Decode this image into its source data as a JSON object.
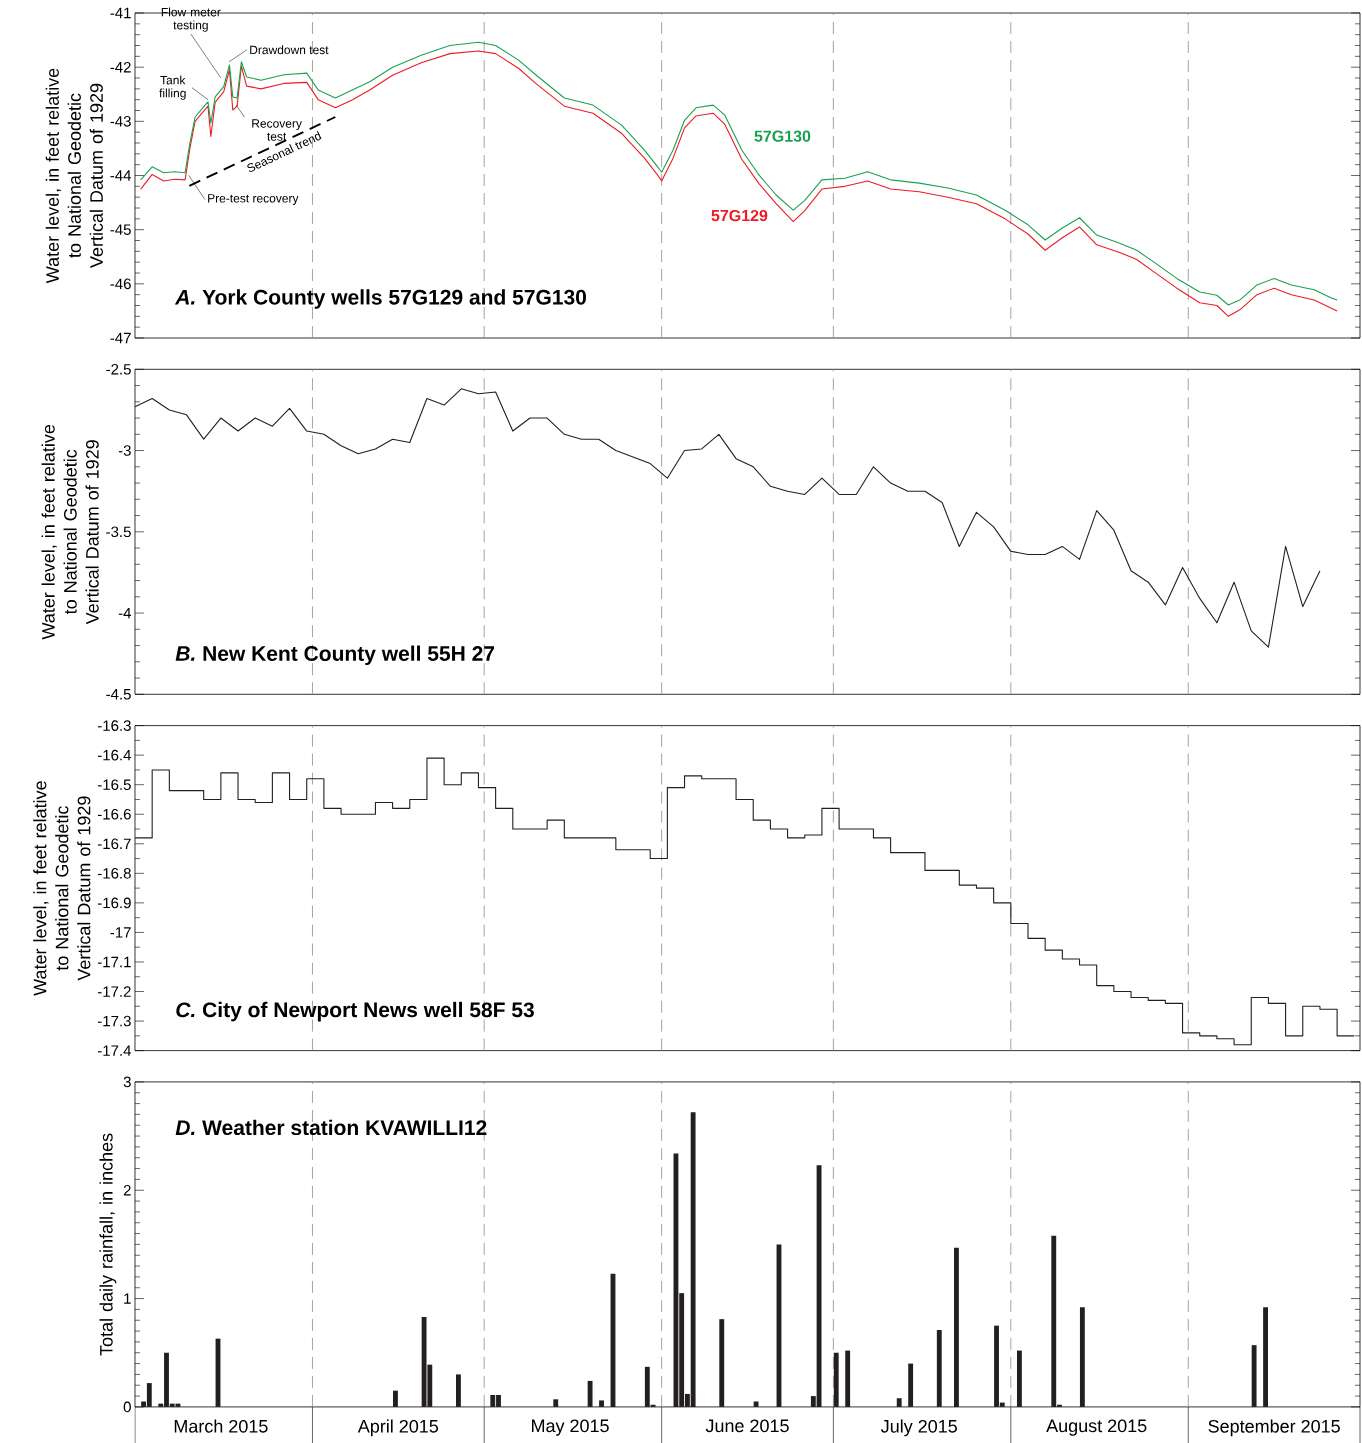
{
  "chart_data": [
    {
      "type": "line",
      "title": "*A.* York County wells 57G129 and 57G130",
      "ylabel": "Water level, in feet relative to National Geodetic Vertical Datum of 1929",
      "xlim": [
        "2015-03-01",
        "2015-10-01"
      ],
      "ylim": [
        -47,
        -41
      ],
      "yticks": [
        -47,
        -46,
        -45,
        -44,
        -43,
        -42,
        -41
      ],
      "tick_labels": "y",
      "x": [
        "2015-03-02",
        "2015-03-04",
        "2015-03-06",
        "2015-03-08",
        "2015-03-09T18:00",
        "2015-03-10T14:00",
        "2015-03-11T12:00",
        "2015-03-13T06:00",
        "2015-03-13T18:00",
        "2015-03-14T06:00",
        "2015-03-15",
        "2015-03-16T12:00",
        "2015-03-17T12:00",
        "2015-03-18T02:00",
        "2015-03-18T20:00",
        "2015-03-19T14:00",
        "2015-03-20T12:00",
        "2015-03-23",
        "2015-03-27",
        "2015-03-31",
        "2015-04-02",
        "2015-04-05",
        "2015-04-08",
        "2015-04-11",
        "2015-04-15",
        "2015-04-20",
        "2015-04-25",
        "2015-04-30",
        "2015-05-03",
        "2015-05-07",
        "2015-05-10",
        "2015-05-15",
        "2015-05-20",
        "2015-05-25",
        "2015-05-29",
        "2015-05-31",
        "2015-06-01",
        "2015-06-03",
        "2015-06-05",
        "2015-06-07",
        "2015-06-10",
        "2015-06-12",
        "2015-06-15",
        "2015-06-18",
        "2015-06-21",
        "2015-06-24",
        "2015-06-26",
        "2015-06-29",
        "2015-07-03",
        "2015-07-07",
        "2015-07-11",
        "2015-07-16",
        "2015-07-21",
        "2015-07-26",
        "2015-07-31",
        "2015-08-04",
        "2015-08-07",
        "2015-08-10",
        "2015-08-13",
        "2015-08-16",
        "2015-08-20",
        "2015-08-23",
        "2015-08-26",
        "2015-08-30",
        "2015-09-03",
        "2015-09-06",
        "2015-09-08",
        "2015-09-10",
        "2015-09-13",
        "2015-09-16",
        "2015-09-19",
        "2015-09-23",
        "2015-09-26",
        "2015-09-27"
      ],
      "series": [
        {
          "name": "57G129",
          "color": "#ed1c24",
          "values": [
            -44.25,
            -43.98,
            -44.1,
            -44.07,
            -44.08,
            -43.5,
            -43.0,
            -42.78,
            -42.72,
            -43.28,
            -42.65,
            -42.45,
            -42.05,
            -42.79,
            -42.72,
            -41.98,
            -42.35,
            -42.4,
            -42.3,
            -42.28,
            -42.6,
            -42.75,
            -42.6,
            -42.42,
            -42.15,
            -41.92,
            -41.75,
            -41.7,
            -41.75,
            -42.02,
            -42.3,
            -42.72,
            -42.85,
            -43.22,
            -43.68,
            -43.95,
            -44.1,
            -43.68,
            -43.12,
            -42.9,
            -42.85,
            -43.05,
            -43.7,
            -44.15,
            -44.52,
            -44.85,
            -44.65,
            -44.25,
            -44.2,
            -44.1,
            -44.25,
            -44.3,
            -44.4,
            -44.52,
            -44.8,
            -45.08,
            -45.38,
            -45.15,
            -44.95,
            -45.28,
            -45.42,
            -45.55,
            -45.78,
            -46.08,
            -46.35,
            -46.4,
            -46.6,
            -46.48,
            -46.2,
            -46.08,
            -46.2,
            -46.3,
            -46.45,
            -46.5
          ]
        },
        {
          "name": "57G130",
          "color": "#1aa150",
          "values": [
            -44.08,
            -43.84,
            -43.95,
            -43.93,
            -43.95,
            -43.4,
            -42.92,
            -42.7,
            -42.64,
            -43.03,
            -42.55,
            -42.36,
            -41.96,
            -42.55,
            -42.57,
            -41.9,
            -42.18,
            -42.24,
            -42.14,
            -42.11,
            -42.42,
            -42.57,
            -42.42,
            -42.27,
            -42.0,
            -41.78,
            -41.6,
            -41.54,
            -41.6,
            -41.87,
            -42.14,
            -42.57,
            -42.7,
            -43.07,
            -43.53,
            -43.8,
            -43.94,
            -43.53,
            -42.98,
            -42.75,
            -42.7,
            -42.88,
            -43.53,
            -43.99,
            -44.36,
            -44.64,
            -44.46,
            -44.08,
            -44.05,
            -43.93,
            -44.08,
            -44.14,
            -44.23,
            -44.36,
            -44.64,
            -44.91,
            -45.19,
            -44.97,
            -44.78,
            -45.1,
            -45.25,
            -45.38,
            -45.6,
            -45.9,
            -46.15,
            -46.21,
            -46.39,
            -46.3,
            -46.02,
            -45.9,
            -46.02,
            -46.11,
            -46.26,
            -46.3
          ]
        },
        {
          "name": "Seasonal trend",
          "color": "#000000",
          "line_style": "dashed",
          "x": [
            "2015-03-10T12:00",
            "2015-04-05"
          ],
          "values": [
            -44.19,
            -42.92
          ]
        }
      ],
      "annotations": [
        {
          "text": "Flow meter testing",
          "x": "2015-03-16",
          "y": -42.2
        },
        {
          "text": "Tank filling",
          "x": "2015-03-13T18:00",
          "y": -42.6
        },
        {
          "text": "Drawdown test",
          "x": "2015-03-17T10:00",
          "y": -41.9
        },
        {
          "text": "Recovery test",
          "x": "2015-03-18T17:00",
          "y": -42.7
        },
        {
          "text": "Pre-test recovery",
          "x": "2015-03-10T10:00",
          "y": -44.0
        }
      ],
      "ref_lines": [
        {
          "axis": "x",
          "value": "2015-04-01",
          "color": "#8c8c8c",
          "line_style": "dashed"
        },
        {
          "axis": "x",
          "value": "2015-05-01",
          "color": "#8c8c8c",
          "line_style": "dashed"
        },
        {
          "axis": "x",
          "value": "2015-06-01",
          "color": "#8c8c8c",
          "line_style": "dashed"
        },
        {
          "axis": "x",
          "value": "2015-07-01",
          "color": "#8c8c8c",
          "line_style": "dashed"
        },
        {
          "axis": "x",
          "value": "2015-08-01",
          "color": "#8c8c8c",
          "line_style": "dashed"
        },
        {
          "axis": "x",
          "value": "2015-09-01",
          "color": "#8c8c8c",
          "line_style": "dashed"
        }
      ]
    },
    {
      "type": "line",
      "title": "*B.* New Kent County well 55H 27",
      "ylabel": "Water level, in feet relative to National Geodetic Vertical Datum of 1929",
      "xlim": [
        "2015-03-01",
        "2015-10-01"
      ],
      "ylim": [
        -4.5,
        -2.5
      ],
      "yticks": [
        -4.5,
        -4,
        -3.5,
        -3,
        -2.5
      ],
      "tick_labels": "y",
      "color": "#231f20",
      "x": [
        "2015-03-01",
        "2015-03-04",
        "2015-03-07",
        "2015-03-10",
        "2015-03-13",
        "2015-03-16",
        "2015-03-19",
        "2015-03-22",
        "2015-03-25",
        "2015-03-28",
        "2015-03-31",
        "2015-04-03",
        "2015-04-06",
        "2015-04-09",
        "2015-04-12",
        "2015-04-15",
        "2015-04-18",
        "2015-04-21",
        "2015-04-24",
        "2015-04-27",
        "2015-04-30",
        "2015-05-03",
        "2015-05-06",
        "2015-05-09",
        "2015-05-12",
        "2015-05-15",
        "2015-05-18",
        "2015-05-21",
        "2015-05-24",
        "2015-05-27",
        "2015-05-30",
        "2015-06-02",
        "2015-06-05",
        "2015-06-08",
        "2015-06-11",
        "2015-06-14",
        "2015-06-17",
        "2015-06-20",
        "2015-06-23",
        "2015-06-26",
        "2015-06-29",
        "2015-07-02",
        "2015-07-05",
        "2015-07-08",
        "2015-07-11",
        "2015-07-14",
        "2015-07-17",
        "2015-07-20",
        "2015-07-23",
        "2015-07-26",
        "2015-07-29",
        "2015-08-01",
        "2015-08-04",
        "2015-08-07",
        "2015-08-10",
        "2015-08-13",
        "2015-08-16",
        "2015-08-19",
        "2015-08-22",
        "2015-08-25",
        "2015-08-28",
        "2015-08-31",
        "2015-09-03",
        "2015-09-06",
        "2015-09-09",
        "2015-09-12",
        "2015-09-15",
        "2015-09-18",
        "2015-09-21",
        "2015-09-24"
      ],
      "values": [
        -2.73,
        -2.68,
        -2.75,
        -2.78,
        -2.93,
        -2.8,
        -2.88,
        -2.8,
        -2.85,
        -2.74,
        -2.88,
        -2.9,
        -2.97,
        -3.02,
        -2.99,
        -2.93,
        -2.95,
        -2.68,
        -2.72,
        -2.62,
        -2.65,
        -2.64,
        -2.88,
        -2.8,
        -2.8,
        -2.9,
        -2.93,
        -2.93,
        -3.0,
        -3.04,
        -3.08,
        -3.17,
        -3.0,
        -2.99,
        -2.9,
        -3.05,
        -3.1,
        -3.22,
        -3.25,
        -3.27,
        -3.17,
        -3.27,
        -3.27,
        -3.1,
        -3.2,
        -3.25,
        -3.25,
        -3.32,
        -3.59,
        -3.38,
        -3.47,
        -3.62,
        -3.64,
        -3.64,
        -3.59,
        -3.67,
        -3.37,
        -3.49,
        -3.74,
        -3.81,
        -3.95,
        -3.72,
        -3.91,
        -4.06,
        -3.81,
        -4.11,
        -4.21,
        -3.59,
        -3.96,
        -3.74
      ],
      "ref_lines": [
        {
          "axis": "x",
          "value": "2015-04-01",
          "color": "#8c8c8c",
          "line_style": "dashed"
        },
        {
          "axis": "x",
          "value": "2015-05-01",
          "color": "#8c8c8c",
          "line_style": "dashed"
        },
        {
          "axis": "x",
          "value": "2015-06-01",
          "color": "#8c8c8c",
          "line_style": "dashed"
        },
        {
          "axis": "x",
          "value": "2015-07-01",
          "color": "#8c8c8c",
          "line_style": "dashed"
        },
        {
          "axis": "x",
          "value": "2015-08-01",
          "color": "#8c8c8c",
          "line_style": "dashed"
        },
        {
          "axis": "x",
          "value": "2015-09-01",
          "color": "#8c8c8c",
          "line_style": "dashed"
        }
      ]
    },
    {
      "type": "step",
      "title": "*C.* City of Newport News well 58F 53",
      "ylabel": "Water level, in feet relative to National Geodetic Vertical Datum of 1929",
      "xlim": [
        "2015-03-01",
        "2015-10-01"
      ],
      "ylim": [
        -17.4,
        -16.3
      ],
      "yticks": [
        -17.4,
        -17.3,
        -17.2,
        -17.1,
        -17,
        -16.9,
        -16.8,
        -16.7,
        -16.6,
        -16.5,
        -16.4,
        -16.3
      ],
      "tick_labels": "y",
      "color": "#231f20",
      "x": [
        "2015-03-01",
        "2015-03-04",
        "2015-03-07",
        "2015-03-10",
        "2015-03-13",
        "2015-03-16",
        "2015-03-19",
        "2015-03-22",
        "2015-03-25",
        "2015-03-28",
        "2015-03-31",
        "2015-04-03",
        "2015-04-06",
        "2015-04-09",
        "2015-04-12",
        "2015-04-15",
        "2015-04-18",
        "2015-04-21",
        "2015-04-24",
        "2015-04-27",
        "2015-04-30",
        "2015-05-03",
        "2015-05-06",
        "2015-05-09",
        "2015-05-12",
        "2015-05-15",
        "2015-05-18",
        "2015-05-21",
        "2015-05-24",
        "2015-05-27",
        "2015-05-30",
        "2015-06-02",
        "2015-06-05",
        "2015-06-08",
        "2015-06-11",
        "2015-06-14",
        "2015-06-17",
        "2015-06-20",
        "2015-06-23",
        "2015-06-26",
        "2015-06-29",
        "2015-07-02",
        "2015-07-05",
        "2015-07-08",
        "2015-07-11",
        "2015-07-14",
        "2015-07-17",
        "2015-07-20",
        "2015-07-23",
        "2015-07-26",
        "2015-07-29",
        "2015-08-01",
        "2015-08-04",
        "2015-08-07",
        "2015-08-10",
        "2015-08-13",
        "2015-08-16",
        "2015-08-19",
        "2015-08-22",
        "2015-08-25",
        "2015-08-28",
        "2015-08-31",
        "2015-09-03",
        "2015-09-06",
        "2015-09-09",
        "2015-09-12",
        "2015-09-15",
        "2015-09-18",
        "2015-09-21",
        "2015-09-24",
        "2015-09-27",
        "2015-09-30"
      ],
      "values": [
        -16.68,
        -16.45,
        -16.52,
        -16.52,
        -16.55,
        -16.46,
        -16.55,
        -16.56,
        -16.46,
        -16.55,
        -16.48,
        -16.58,
        -16.6,
        -16.6,
        -16.56,
        -16.58,
        -16.55,
        -16.41,
        -16.5,
        -16.46,
        -16.51,
        -16.58,
        -16.65,
        -16.65,
        -16.62,
        -16.68,
        -16.68,
        -16.68,
        -16.72,
        -16.72,
        -16.75,
        -16.51,
        -16.47,
        -16.48,
        -16.48,
        -16.55,
        -16.62,
        -16.65,
        -16.68,
        -16.67,
        -16.58,
        -16.65,
        -16.65,
        -16.68,
        -16.73,
        -16.73,
        -16.79,
        -16.79,
        -16.84,
        -16.85,
        -16.9,
        -16.97,
        -17.02,
        -17.06,
        -17.09,
        -17.11,
        -17.18,
        -17.2,
        -17.22,
        -17.23,
        -17.24,
        -17.34,
        -17.35,
        -17.36,
        -17.38,
        -17.22,
        -17.24,
        -17.35,
        -17.25,
        -17.26,
        -17.35,
        -17.35
      ],
      "ref_lines": [
        {
          "axis": "x",
          "value": "2015-04-01",
          "color": "#8c8c8c",
          "line_style": "dashed"
        },
        {
          "axis": "x",
          "value": "2015-05-01",
          "color": "#8c8c8c",
          "line_style": "dashed"
        },
        {
          "axis": "x",
          "value": "2015-06-01",
          "color": "#8c8c8c",
          "line_style": "dashed"
        },
        {
          "axis": "x",
          "value": "2015-07-01",
          "color": "#8c8c8c",
          "line_style": "dashed"
        },
        {
          "axis": "x",
          "value": "2015-08-01",
          "color": "#8c8c8c",
          "line_style": "dashed"
        },
        {
          "axis": "x",
          "value": "2015-09-01",
          "color": "#8c8c8c",
          "line_style": "dashed"
        }
      ]
    },
    {
      "type": "bar",
      "title": "*D.* Weather station KVAWILLI12",
      "ylabel": "Total daily rainfall, in inches",
      "xlim": [
        "2015-03-01",
        "2015-10-01"
      ],
      "xticks": [
        {
          "value": "2015-03-01",
          "label": null
        },
        {
          "value": "2015-03-16",
          "label": "March 2015"
        },
        {
          "value": "2015-04-01",
          "label": null
        },
        {
          "value": "2015-04-16",
          "label": "April 2015"
        },
        {
          "value": "2015-05-01",
          "label": null
        },
        {
          "value": "2015-05-16",
          "label": "May 2015"
        },
        {
          "value": "2015-06-01",
          "label": null
        },
        {
          "value": "2015-06-16",
          "label": "June 2015"
        },
        {
          "value": "2015-07-01",
          "label": null
        },
        {
          "value": "2015-07-16",
          "label": "July 2015"
        },
        {
          "value": "2015-08-01",
          "label": null
        },
        {
          "value": "2015-08-16",
          "label": "August 2015"
        },
        {
          "value": "2015-09-01",
          "label": null
        },
        {
          "value": "2015-09-16",
          "label": "September 2015"
        },
        {
          "value": "2015-10-01",
          "label": null
        }
      ],
      "ylim": [
        0,
        3
      ],
      "yticks": [
        0,
        1,
        2,
        3
      ],
      "color": "#231f20",
      "x": [
        "2015-03-02",
        "2015-03-03",
        "2015-03-05",
        "2015-03-06",
        "2015-03-07",
        "2015-03-08",
        "2015-03-15",
        "2015-04-15",
        "2015-04-20",
        "2015-04-21",
        "2015-04-26",
        "2015-05-02",
        "2015-05-03",
        "2015-05-13",
        "2015-05-19",
        "2015-05-21",
        "2015-05-23",
        "2015-05-29",
        "2015-05-30",
        "2015-06-03",
        "2015-06-04",
        "2015-06-05",
        "2015-06-06",
        "2015-06-11",
        "2015-06-17",
        "2015-06-21",
        "2015-06-27",
        "2015-06-28",
        "2015-07-01",
        "2015-07-03",
        "2015-07-12",
        "2015-07-14",
        "2015-07-19",
        "2015-07-22",
        "2015-07-29",
        "2015-07-30",
        "2015-08-02",
        "2015-08-08",
        "2015-08-09",
        "2015-08-13",
        "2015-09-12",
        "2015-09-14"
      ],
      "values": [
        0.05,
        0.22,
        0.03,
        0.5,
        0.03,
        0.03,
        0.63,
        0.15,
        0.83,
        0.39,
        0.3,
        0.11,
        0.11,
        0.07,
        0.24,
        0.06,
        1.23,
        0.37,
        0.02,
        2.34,
        1.05,
        0.12,
        2.72,
        0.81,
        0.05,
        1.5,
        0.1,
        2.23,
        0.5,
        0.52,
        0.08,
        0.4,
        0.71,
        1.47,
        0.75,
        0.04,
        0.52,
        1.58,
        0.02,
        0.92,
        0.57,
        0.92
      ],
      "ref_lines": [
        {
          "axis": "x",
          "value": "2015-04-01",
          "color": "#8c8c8c",
          "line_style": "dashed"
        },
        {
          "axis": "x",
          "value": "2015-05-01",
          "color": "#8c8c8c",
          "line_style": "dashed"
        },
        {
          "axis": "x",
          "value": "2015-06-01",
          "color": "#8c8c8c",
          "line_style": "dashed"
        },
        {
          "axis": "x",
          "value": "2015-07-01",
          "color": "#8c8c8c",
          "line_style": "dashed"
        },
        {
          "axis": "x",
          "value": "2015-08-01",
          "color": "#8c8c8c",
          "line_style": "dashed"
        },
        {
          "axis": "x",
          "value": "2015-09-01",
          "color": "#8c8c8c",
          "line_style": "dashed"
        }
      ]
    }
  ]
}
